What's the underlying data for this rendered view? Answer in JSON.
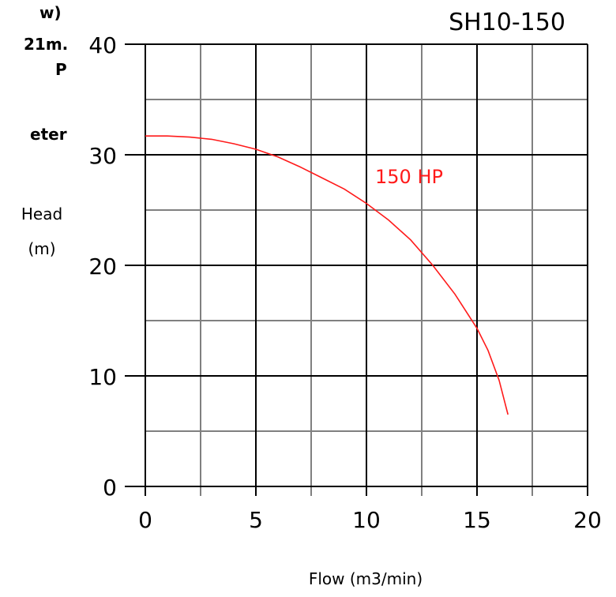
{
  "side_text": [
    "w)",
    "21m.",
    "P",
    "eter"
  ],
  "chart_data": {
    "type": "line",
    "title": "SH10-150",
    "xlabel": "Flow (m3/min)",
    "ylabel_line1": "Head",
    "ylabel_line2": "(m)",
    "xlim": [
      0,
      20
    ],
    "ylim": [
      0,
      40
    ],
    "x_ticks": [
      "0",
      "5",
      "10",
      "15",
      "20"
    ],
    "y_ticks": [
      "0",
      "10",
      "20",
      "30",
      "40"
    ],
    "grid": true,
    "series": [
      {
        "name": "150 HP",
        "color": "#ff1a1a",
        "x": [
          0,
          1,
          2,
          3,
          4,
          5,
          6,
          7,
          8,
          9,
          10,
          11,
          12,
          13,
          14,
          15,
          15.5,
          16,
          16.4
        ],
        "y": [
          31.7,
          31.7,
          31.6,
          31.4,
          31.0,
          30.5,
          29.8,
          28.9,
          27.9,
          26.9,
          25.6,
          24.1,
          22.3,
          20.0,
          17.4,
          14.3,
          12.3,
          9.6,
          6.5
        ]
      }
    ]
  }
}
